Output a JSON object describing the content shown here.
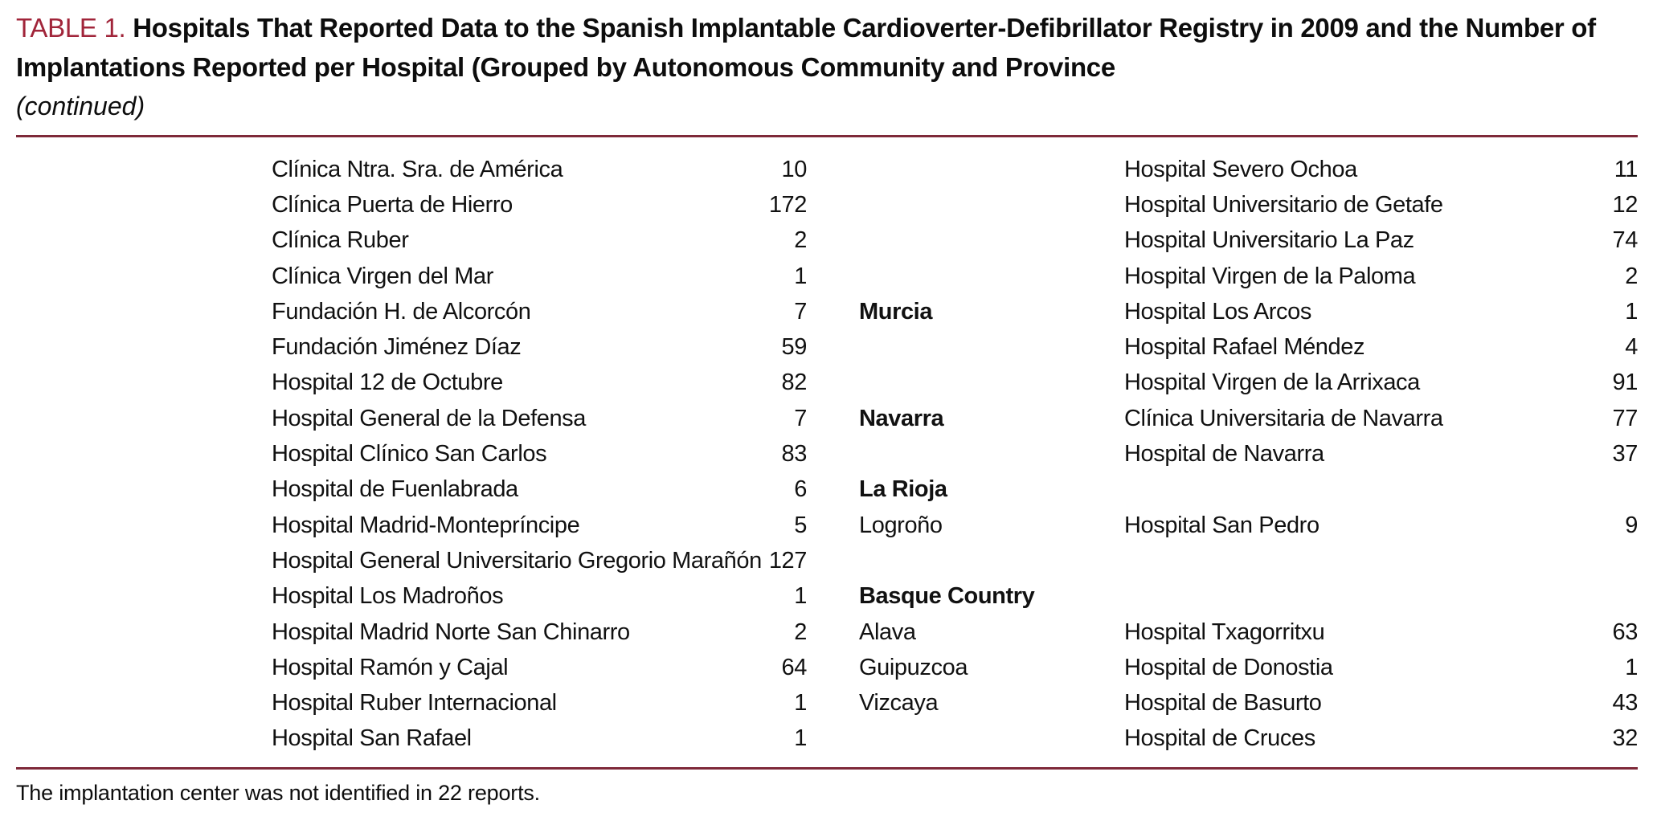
{
  "title": {
    "label": "TABLE 1.",
    "text": "Hospitals That Reported Data to the Spanish Implantable Cardioverter-Defibrillator Registry in 2009 and the Number of Implantations Reported per Hospital (Grouped by Autonomous Community and Province",
    "continued": "(continued)"
  },
  "colors": {
    "accent_label": "#a1253a",
    "rule": "#7e2939",
    "text": "#111111",
    "background": "#ffffff"
  },
  "table": {
    "rows": [
      {
        "hospital_left": "Clínica Ntra. Sra. de América",
        "n_left": "10",
        "region_right": "",
        "region_right_bold": false,
        "hospital_right": "Hospital Severo Ochoa",
        "n_right": "11"
      },
      {
        "hospital_left": "Clínica Puerta de Hierro",
        "n_left": "172",
        "region_right": "",
        "region_right_bold": false,
        "hospital_right": "Hospital Universitario de Getafe",
        "n_right": "12"
      },
      {
        "hospital_left": "Clínica Ruber",
        "n_left": "2",
        "region_right": "",
        "region_right_bold": false,
        "hospital_right": "Hospital Universitario La Paz",
        "n_right": "74"
      },
      {
        "hospital_left": "Clínica Virgen del Mar",
        "n_left": "1",
        "region_right": "",
        "region_right_bold": false,
        "hospital_right": "Hospital Virgen de la Paloma",
        "n_right": "2"
      },
      {
        "hospital_left": "Fundación H. de Alcorcón",
        "n_left": "7",
        "region_right": "Murcia",
        "region_right_bold": true,
        "hospital_right": "Hospital Los Arcos",
        "n_right": "1"
      },
      {
        "hospital_left": "Fundación Jiménez Díaz",
        "n_left": "59",
        "region_right": "",
        "region_right_bold": false,
        "hospital_right": "Hospital Rafael Méndez",
        "n_right": "4"
      },
      {
        "hospital_left": "Hospital 12 de Octubre",
        "n_left": "82",
        "region_right": "",
        "region_right_bold": false,
        "hospital_right": "Hospital Virgen de la Arrixaca",
        "n_right": "91"
      },
      {
        "hospital_left": "Hospital General de la Defensa",
        "n_left": "7",
        "region_right": "Navarra",
        "region_right_bold": true,
        "hospital_right": "Clínica Universitaria de Navarra",
        "n_right": "77"
      },
      {
        "hospital_left": "Hospital Clínico San Carlos",
        "n_left": "83",
        "region_right": "",
        "region_right_bold": false,
        "hospital_right": "Hospital de Navarra",
        "n_right": "37"
      },
      {
        "hospital_left": "Hospital de Fuenlabrada",
        "n_left": "6",
        "region_right": "La Rioja",
        "region_right_bold": true,
        "hospital_right": "",
        "n_right": ""
      },
      {
        "hospital_left": "Hospital Madrid-Montepríncipe",
        "n_left": "5",
        "region_right": "Logroño",
        "region_right_bold": false,
        "hospital_right": "Hospital San Pedro",
        "n_right": "9"
      },
      {
        "hospital_left": "Hospital General Universitario Gregorio Marañón",
        "n_left": "127",
        "region_right": "",
        "region_right_bold": false,
        "hospital_right": "",
        "n_right": ""
      },
      {
        "hospital_left": "Hospital Los Madroños",
        "n_left": "1",
        "region_right": "Basque Country",
        "region_right_bold": true,
        "hospital_right": "",
        "n_right": ""
      },
      {
        "hospital_left": "Hospital Madrid Norte San Chinarro",
        "n_left": "2",
        "region_right": "Alava",
        "region_right_bold": false,
        "hospital_right": "Hospital Txagorritxu",
        "n_right": "63"
      },
      {
        "hospital_left": "Hospital Ramón y Cajal",
        "n_left": "64",
        "region_right": "Guipuzcoa",
        "region_right_bold": false,
        "hospital_right": "Hospital de Donostia",
        "n_right": "1"
      },
      {
        "hospital_left": "Hospital Ruber Internacional",
        "n_left": "1",
        "region_right": "Vizcaya",
        "region_right_bold": false,
        "hospital_right": "Hospital de Basurto",
        "n_right": "43"
      },
      {
        "hospital_left": "Hospital San Rafael",
        "n_left": "1",
        "region_right": "",
        "region_right_bold": false,
        "hospital_right": "Hospital de Cruces",
        "n_right": "32"
      }
    ]
  },
  "footnote": "The implantation center was not identified in 22 reports."
}
